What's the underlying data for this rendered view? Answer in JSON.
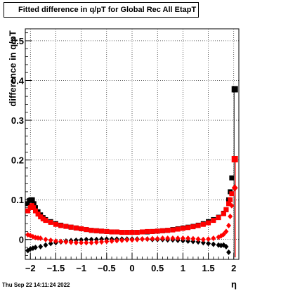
{
  "title": "Fitted difference in q/pT for Global Rec All EtapT",
  "footer": "Thu Sep 22 14:11:24 2022",
  "chart_data": {
    "type": "scatter",
    "title": "Fitted difference in q/pT for Global Rec All EtapT",
    "xlabel": "η",
    "ylabel": "difference in q/pT",
    "xlim": [
      -2.1,
      2.1
    ],
    "ylim": [
      -0.05,
      0.53
    ],
    "xticks": [
      -2,
      -1.5,
      -1,
      -0.5,
      0,
      0.5,
      1,
      1.5,
      2
    ],
    "xtick_labels": [
      "−2",
      "−1.5",
      "−1",
      "−0.5",
      "0",
      "0.5",
      "1",
      "1.5",
      "2"
    ],
    "yticks": [
      0,
      0.1,
      0.2,
      0.3,
      0.4,
      0.5
    ],
    "ytick_labels": [
      "0",
      "0.1",
      "0.2",
      "0.3",
      "0.4",
      "0.5"
    ],
    "grid": true,
    "series": [
      {
        "marker": "square",
        "color": "#000000",
        "points": [
          [
            -2.05,
            0.09
          ],
          [
            -2.02,
            0.098
          ],
          [
            -1.99,
            0.1
          ],
          [
            -1.96,
            0.1
          ],
          [
            -1.93,
            0.09
          ],
          [
            -1.9,
            0.08
          ],
          [
            -1.85,
            0.07
          ],
          [
            -1.8,
            0.062
          ],
          [
            -1.75,
            0.055
          ],
          [
            -1.7,
            0.05
          ],
          [
            -1.6,
            0.045
          ],
          [
            -1.5,
            0.04
          ],
          [
            -1.4,
            0.036
          ],
          [
            -1.3,
            0.033
          ],
          [
            -1.2,
            0.031
          ],
          [
            -1.1,
            0.029
          ],
          [
            -1.0,
            0.027
          ],
          [
            -0.9,
            0.025
          ],
          [
            -0.8,
            0.023
          ],
          [
            -0.7,
            0.022
          ],
          [
            -0.6,
            0.021
          ],
          [
            -0.5,
            0.02
          ],
          [
            -0.4,
            0.019
          ],
          [
            -0.3,
            0.019
          ],
          [
            -0.2,
            0.018
          ],
          [
            -0.1,
            0.018
          ],
          [
            0.0,
            0.018
          ],
          [
            0.1,
            0.018
          ],
          [
            0.2,
            0.019
          ],
          [
            0.3,
            0.019
          ],
          [
            0.4,
            0.02
          ],
          [
            0.5,
            0.021
          ],
          [
            0.6,
            0.022
          ],
          [
            0.7,
            0.023
          ],
          [
            0.8,
            0.025
          ],
          [
            0.9,
            0.027
          ],
          [
            1.0,
            0.029
          ],
          [
            1.1,
            0.031
          ],
          [
            1.2,
            0.033
          ],
          [
            1.3,
            0.036
          ],
          [
            1.4,
            0.04
          ],
          [
            1.5,
            0.045
          ],
          [
            1.6,
            0.05
          ],
          [
            1.7,
            0.056
          ],
          [
            1.8,
            0.066
          ],
          [
            1.85,
            0.075
          ],
          [
            1.9,
            0.1
          ],
          [
            1.93,
            0.12
          ],
          [
            1.96,
            0.155
          ],
          [
            2.02,
            0.378
          ]
        ]
      },
      {
        "marker": "diamond",
        "color": "#000000",
        "points": [
          [
            -2.05,
            -0.028
          ],
          [
            -2.0,
            -0.024
          ],
          [
            -1.95,
            -0.022
          ],
          [
            -1.9,
            -0.02
          ],
          [
            -1.8,
            -0.018
          ],
          [
            -1.7,
            -0.014
          ],
          [
            -1.6,
            -0.01
          ],
          [
            -1.5,
            -0.008
          ],
          [
            -1.4,
            -0.006
          ],
          [
            -1.3,
            -0.004
          ],
          [
            -1.2,
            -0.003
          ],
          [
            -1.1,
            -0.002
          ],
          [
            -1.0,
            -0.001
          ],
          [
            -0.9,
            0.0
          ],
          [
            -0.8,
            0.0
          ],
          [
            -0.7,
            0.0
          ],
          [
            -0.6,
            0.001
          ],
          [
            -0.5,
            0.001
          ],
          [
            -0.4,
            0.001
          ],
          [
            -0.3,
            0.001
          ],
          [
            -0.2,
            0.001
          ],
          [
            -0.1,
            0.001
          ],
          [
            0.0,
            0.001
          ],
          [
            0.1,
            0.001
          ],
          [
            0.2,
            0.001
          ],
          [
            0.3,
            0.001
          ],
          [
            0.4,
            0.0
          ],
          [
            0.5,
            0.0
          ],
          [
            0.6,
            0.0
          ],
          [
            0.7,
            -0.001
          ],
          [
            0.8,
            -0.001
          ],
          [
            0.9,
            -0.002
          ],
          [
            1.0,
            -0.003
          ],
          [
            1.1,
            -0.004
          ],
          [
            1.2,
            -0.005
          ],
          [
            1.3,
            -0.006
          ],
          [
            1.4,
            -0.008
          ],
          [
            1.5,
            -0.01
          ],
          [
            1.6,
            -0.012
          ],
          [
            1.7,
            -0.014
          ],
          [
            1.75,
            -0.015
          ],
          [
            1.8,
            -0.014
          ],
          [
            1.85,
            -0.018
          ],
          [
            1.9,
            -0.032
          ]
        ]
      },
      {
        "marker": "square",
        "color": "#ff0000",
        "points": [
          [
            -2.05,
            0.072
          ],
          [
            -2.0,
            0.08
          ],
          [
            -1.97,
            0.085
          ],
          [
            -1.94,
            0.08
          ],
          [
            -1.9,
            0.072
          ],
          [
            -1.85,
            0.064
          ],
          [
            -1.8,
            0.057
          ],
          [
            -1.75,
            0.052
          ],
          [
            -1.7,
            0.048
          ],
          [
            -1.6,
            0.043
          ],
          [
            -1.5,
            0.038
          ],
          [
            -1.4,
            0.035
          ],
          [
            -1.3,
            0.033
          ],
          [
            -1.2,
            0.031
          ],
          [
            -1.1,
            0.029
          ],
          [
            -1.0,
            0.027
          ],
          [
            -0.9,
            0.025
          ],
          [
            -0.8,
            0.023
          ],
          [
            -0.7,
            0.022
          ],
          [
            -0.6,
            0.021
          ],
          [
            -0.5,
            0.02
          ],
          [
            -0.4,
            0.019
          ],
          [
            -0.3,
            0.019
          ],
          [
            -0.2,
            0.018
          ],
          [
            -0.1,
            0.018
          ],
          [
            0.0,
            0.018
          ],
          [
            0.1,
            0.018
          ],
          [
            0.2,
            0.019
          ],
          [
            0.3,
            0.02
          ],
          [
            0.4,
            0.02
          ],
          [
            0.5,
            0.021
          ],
          [
            0.6,
            0.022
          ],
          [
            0.7,
            0.023
          ],
          [
            0.8,
            0.024
          ],
          [
            0.9,
            0.026
          ],
          [
            1.0,
            0.028
          ],
          [
            1.1,
            0.03
          ],
          [
            1.2,
            0.032
          ],
          [
            1.3,
            0.035
          ],
          [
            1.4,
            0.038
          ],
          [
            1.5,
            0.042
          ],
          [
            1.6,
            0.048
          ],
          [
            1.7,
            0.055
          ],
          [
            1.8,
            0.065
          ],
          [
            1.85,
            0.075
          ],
          [
            1.9,
            0.09
          ],
          [
            1.93,
            0.1
          ],
          [
            1.96,
            0.115
          ],
          [
            2.02,
            0.202
          ]
        ]
      },
      {
        "marker": "diamond",
        "color": "#ff0000",
        "points": [
          [
            -2.05,
            0.012
          ],
          [
            -2.0,
            0.01
          ],
          [
            -1.95,
            0.007
          ],
          [
            -1.9,
            0.005
          ],
          [
            -1.85,
            0.004
          ],
          [
            -1.8,
            0.003
          ],
          [
            -1.7,
            0.0
          ],
          [
            -1.6,
            -0.002
          ],
          [
            -1.5,
            -0.004
          ],
          [
            -1.4,
            -0.005
          ],
          [
            -1.3,
            -0.006
          ],
          [
            -1.2,
            -0.007
          ],
          [
            -1.1,
            -0.008
          ],
          [
            -1.0,
            -0.008
          ],
          [
            -0.9,
            -0.008
          ],
          [
            -0.8,
            -0.008
          ],
          [
            -0.7,
            -0.007
          ],
          [
            -0.6,
            -0.006
          ],
          [
            -0.5,
            -0.005
          ],
          [
            -0.4,
            -0.004
          ],
          [
            -0.3,
            -0.003
          ],
          [
            -0.2,
            -0.002
          ],
          [
            -0.1,
            -0.001
          ],
          [
            0.0,
            -0.001
          ],
          [
            0.1,
            0.0
          ],
          [
            0.2,
            0.001
          ],
          [
            0.3,
            0.001
          ],
          [
            0.4,
            0.002
          ],
          [
            0.5,
            0.002
          ],
          [
            0.6,
            0.003
          ],
          [
            0.7,
            0.003
          ],
          [
            0.8,
            0.003
          ],
          [
            0.9,
            0.003
          ],
          [
            1.0,
            0.003
          ],
          [
            1.1,
            0.003
          ],
          [
            1.2,
            0.002
          ],
          [
            1.3,
            0.001
          ],
          [
            1.4,
            0.0
          ],
          [
            1.5,
            0.001
          ],
          [
            1.6,
            0.003
          ],
          [
            1.7,
            0.006
          ],
          [
            1.75,
            0.009
          ],
          [
            1.8,
            0.013
          ],
          [
            1.85,
            0.02
          ],
          [
            1.9,
            0.035
          ],
          [
            1.93,
            0.058
          ],
          [
            1.96,
            0.085
          ],
          [
            2.02,
            0.13
          ]
        ]
      }
    ],
    "spike": {
      "x": 2.02,
      "y_low": -0.045,
      "y_high": 0.378,
      "colors": [
        "#000000",
        "#ff0000"
      ]
    }
  }
}
